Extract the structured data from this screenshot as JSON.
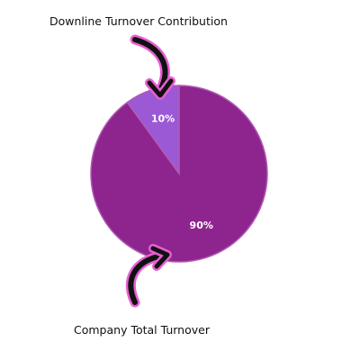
{
  "chart_data": {
    "type": "pie",
    "title": "",
    "slices": [
      {
        "label": "10%",
        "value": 10,
        "color": "#9b59d6"
      },
      {
        "label": "90%",
        "value": 90,
        "color": "#8e258f"
      }
    ],
    "annotations": {
      "top": "Downline Turnover Contribution",
      "bottom": "Company Total Turnover"
    }
  },
  "colors": {
    "pie_outline": "#b35bb5",
    "arrow_body": "#111111",
    "arrow_glow": "#e85fd2"
  }
}
